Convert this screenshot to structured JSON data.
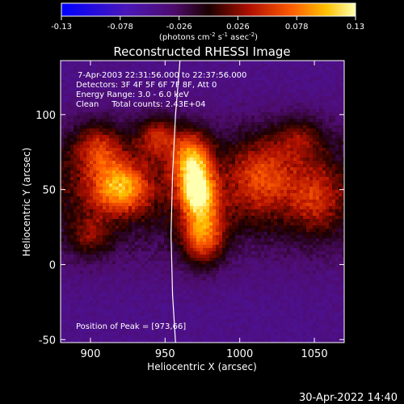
{
  "chart_data": {
    "type": "heatmap",
    "title": "Reconstructed RHESSI Image",
    "xlabel": "Heliocentric X (arcsec)",
    "ylabel": "Heliocentric Y (arcsec)",
    "xlim": [
      880,
      1070
    ],
    "ylim": [
      -52,
      136
    ],
    "x_ticks": [
      900,
      950,
      1000,
      1050
    ],
    "y_ticks": [
      -50,
      0,
      50,
      100
    ],
    "colorbar": {
      "min": -0.13,
      "max": 0.13,
      "tick_values": [
        -0.13,
        -0.078,
        -0.026,
        0.026,
        0.078,
        0.13
      ],
      "tick_labels": [
        "-0.13",
        "-0.078",
        "-0.026",
        "0.026",
        "0.078",
        "0.13"
      ],
      "units_text": "(photons cm",
      "units_sup1": "-2",
      "units_mid1": " s",
      "units_sup2": "-1",
      "units_mid2": " asec",
      "units_sup3": "-2",
      "units_end": ")"
    },
    "annotations": {
      "time_range": "7-Apr-2003 22:31:56.000 to 22:37:56.000",
      "detectors": "Detectors: 3F 4F 5F 6F 7F 8F, Att 0",
      "energy": "Energy Range: 3.0 - 6.0 keV",
      "clean": "Clean     Total counts: 2.43E+04",
      "peak": "Position of Peak = [973,66]"
    },
    "peak_position": [
      973,
      66
    ],
    "sources": [
      {
        "x": 968,
        "y": 68,
        "sigma_x": 9,
        "sigma_y": 14,
        "amp": 0.125
      },
      {
        "x": 972,
        "y": 48,
        "sigma_x": 8,
        "sigma_y": 10,
        "amp": 0.1
      },
      {
        "x": 975,
        "y": 22,
        "sigma_x": 10,
        "sigma_y": 14,
        "amp": 0.11
      },
      {
        "x": 920,
        "y": 52,
        "sigma_x": 14,
        "sigma_y": 12,
        "amp": 0.105
      },
      {
        "x": 905,
        "y": 78,
        "sigma_x": 12,
        "sigma_y": 12,
        "amp": 0.07
      },
      {
        "x": 945,
        "y": 85,
        "sigma_x": 10,
        "sigma_y": 10,
        "amp": 0.07
      },
      {
        "x": 1015,
        "y": 60,
        "sigma_x": 16,
        "sigma_y": 18,
        "amp": 0.065
      },
      {
        "x": 1050,
        "y": 45,
        "sigma_x": 12,
        "sigma_y": 16,
        "amp": 0.05
      },
      {
        "x": 1040,
        "y": 85,
        "sigma_x": 12,
        "sigma_y": 10,
        "amp": 0.045
      },
      {
        "x": 900,
        "y": 20,
        "sigma_x": 10,
        "sigma_y": 10,
        "amp": 0.045
      }
    ],
    "limb_curve": [
      [
        960,
        136
      ],
      [
        957,
        100
      ],
      [
        955,
        60
      ],
      [
        954,
        20
      ],
      [
        955,
        -20
      ],
      [
        957,
        -52
      ]
    ]
  },
  "footer_timestamp": "30-Apr-2022 14:40"
}
